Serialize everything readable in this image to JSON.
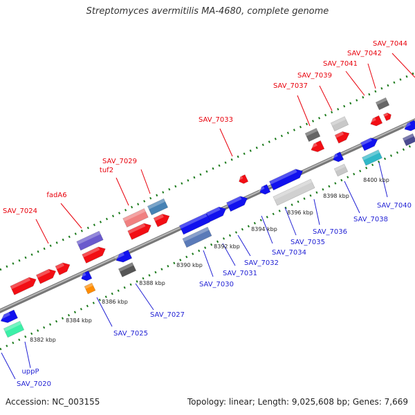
{
  "title": "Streptomyces avermitilis MA-4680, complete genome",
  "accession": "Accession: NC_003155",
  "summary": "Topology: linear; Length: 9,025,608 bp; Genes: 7,669",
  "top_labels": [
    "SAV_7024",
    "fadA6",
    "tuf2",
    "SAV_7029",
    "SAV_7033",
    "SAV_7037",
    "SAV_7039",
    "SAV_7041",
    "SAV_7042",
    "SAV_7044"
  ],
  "bottom_labels": [
    "SAV_7020",
    "uppP",
    "SAV_7025",
    "SAV_7027",
    "SAV_7030",
    "SAV_7031",
    "SAV_7032",
    "SAV_7034",
    "SAV_7035",
    "SAV_7036",
    "SAV_7038",
    "SAV_7040"
  ],
  "kbp_labels": [
    "8382 kbp",
    "8384 kbp",
    "8386 kbp",
    "8388 kbp",
    "8390 kbp",
    "8392 kbp",
    "8394 kbp",
    "8396 kbp",
    "8398 kbp",
    "8400 kbp"
  ],
  "colors": {
    "top_label": "#e8000b",
    "bottom_label": "#1f1fd4",
    "backbone": "#888888",
    "dots_top": "#1b7a1b",
    "dots_bottom": "#1b7a1b"
  }
}
